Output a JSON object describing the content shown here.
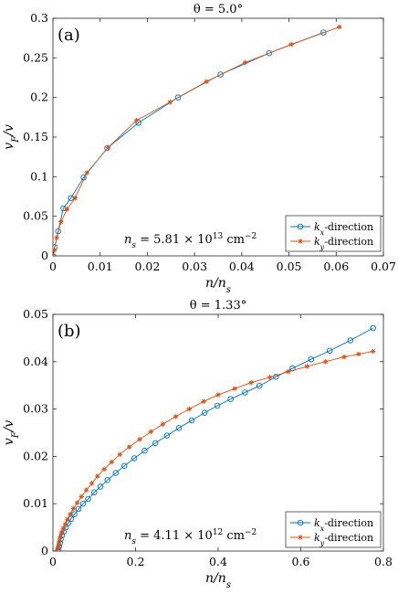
{
  "chart_data": [
    {
      "type": "line",
      "panel_label": "(a)",
      "title": "θ = 5.0°",
      "xlabel": "n/n",
      "xlabel_sub": "s",
      "ylabel": "v",
      "ylabel_sub": "F",
      "ylabel_suffix": "/v",
      "xlim": [
        0,
        0.07
      ],
      "ylim": [
        0,
        0.3
      ],
      "xticks": [
        "0",
        "0.01",
        "0.02",
        "0.03",
        "0.04",
        "0.05",
        "0.06",
        "0.07"
      ],
      "yticks": [
        "0",
        "0.05",
        "0.1",
        "0.15",
        "0.2",
        "0.25",
        "0.3"
      ],
      "annotation": {
        "lhs": "n",
        "lhs_sub": "s",
        "text": " = 5.81 × 10",
        "exp": "13",
        "unit": " cm",
        "unit_exp": "−2"
      },
      "legend_position": "bottom-right",
      "series": [
        {
          "name": "k",
          "name_sub": "x",
          "name_suffix": "-direction",
          "color": "#0072bd",
          "marker": "circle",
          "x": [
            0,
            0.0004,
            0.0011,
            0.0022,
            0.0038,
            0.0065,
            0.0115,
            0.0181,
            0.0265,
            0.0355,
            0.0458,
            0.0573
          ],
          "y": [
            0,
            0.011,
            0.031,
            0.06,
            0.073,
            0.099,
            0.136,
            0.168,
            0.2,
            0.229,
            0.256,
            0.282
          ]
        },
        {
          "name": "k",
          "name_sub": "y",
          "name_suffix": "-direction",
          "color": "#d95319",
          "marker": "star",
          "x": [
            0,
            0.0003,
            0.0008,
            0.0017,
            0.003,
            0.0047,
            0.0072,
            0.0117,
            0.0177,
            0.0248,
            0.0325,
            0.0407,
            0.0505,
            0.0607
          ],
          "y": [
            0,
            0.007,
            0.023,
            0.043,
            0.059,
            0.073,
            0.105,
            0.137,
            0.171,
            0.194,
            0.22,
            0.244,
            0.267,
            0.289
          ]
        }
      ]
    },
    {
      "type": "line",
      "panel_label": "(b)",
      "title": "θ = 1.33°",
      "xlabel": "n/n",
      "xlabel_sub": "s",
      "ylabel": "v",
      "ylabel_sub": "F",
      "ylabel_suffix": "/v",
      "xlim": [
        0,
        0.8
      ],
      "ylim": [
        0,
        0.05
      ],
      "xticks": [
        "0",
        "0.2",
        "0.4",
        "0.6",
        "0.8"
      ],
      "yticks": [
        "0",
        "0.01",
        "0.02",
        "0.03",
        "0.04",
        "0.05"
      ],
      "annotation": {
        "lhs": "n",
        "lhs_sub": "s",
        "text": " = 4.11 × 10",
        "exp": "12",
        "unit": " cm",
        "unit_exp": "−2"
      },
      "legend_position": "bottom-right",
      "series": [
        {
          "name": "k",
          "name_sub": "x",
          "name_suffix": "-direction",
          "color": "#0072bd",
          "marker": "circle",
          "x": [
            0.012,
            0.013,
            0.015,
            0.017,
            0.019,
            0.022,
            0.026,
            0.031,
            0.037,
            0.044,
            0.052,
            0.062,
            0.073,
            0.085,
            0.1,
            0.115,
            0.132,
            0.152,
            0.173,
            0.197,
            0.222,
            0.248,
            0.276,
            0.305,
            0.336,
            0.367,
            0.398,
            0.43,
            0.465,
            0.5,
            0.54,
            0.58,
            0.625,
            0.67,
            0.72,
            0.775
          ],
          "y": [
            0,
            0.0004,
            0.001,
            0.0017,
            0.0025,
            0.0033,
            0.0041,
            0.005,
            0.0059,
            0.0068,
            0.0078,
            0.0089,
            0.01,
            0.011,
            0.0124,
            0.0136,
            0.015,
            0.0165,
            0.018,
            0.0196,
            0.0212,
            0.0228,
            0.0244,
            0.026,
            0.0276,
            0.0292,
            0.0307,
            0.0321,
            0.0335,
            0.0349,
            0.0368,
            0.0386,
            0.0405,
            0.0423,
            0.0445,
            0.0471
          ]
        },
        {
          "name": "k",
          "name_sub": "y",
          "name_suffix": "-direction",
          "color": "#d95319",
          "marker": "star",
          "x": [
            0.011,
            0.012,
            0.014,
            0.016,
            0.018,
            0.021,
            0.025,
            0.03,
            0.035,
            0.042,
            0.05,
            0.059,
            0.069,
            0.081,
            0.094,
            0.108,
            0.124,
            0.142,
            0.162,
            0.185,
            0.21,
            0.237,
            0.266,
            0.297,
            0.33,
            0.365,
            0.4,
            0.44,
            0.48,
            0.525,
            0.57,
            0.615,
            0.66,
            0.705,
            0.74,
            0.775
          ],
          "y": [
            0,
            0.0006,
            0.0013,
            0.0021,
            0.003,
            0.0039,
            0.0048,
            0.0057,
            0.0067,
            0.0078,
            0.009,
            0.0102,
            0.0115,
            0.0129,
            0.0143,
            0.0158,
            0.0173,
            0.0188,
            0.0204,
            0.022,
            0.0236,
            0.0252,
            0.0268,
            0.0284,
            0.03,
            0.0316,
            0.033,
            0.0343,
            0.0356,
            0.0367,
            0.0379,
            0.039,
            0.04,
            0.041,
            0.0416,
            0.0422
          ]
        }
      ]
    }
  ]
}
